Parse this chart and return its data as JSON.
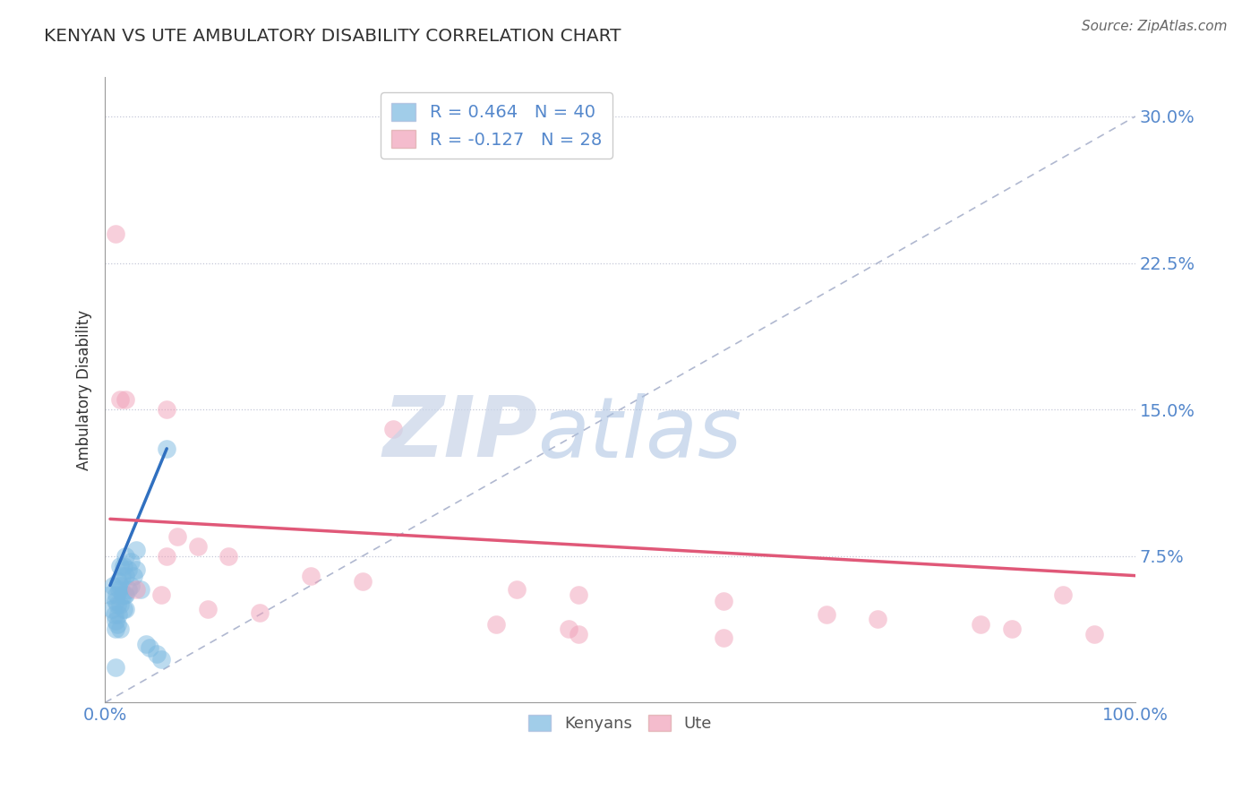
{
  "title": "KENYAN VS UTE AMBULATORY DISABILITY CORRELATION CHART",
  "source": "Source: ZipAtlas.com",
  "ylabel": "Ambulatory Disability",
  "xlim": [
    0.0,
    1.0
  ],
  "ylim": [
    0.0,
    0.32
  ],
  "yticks": [
    0.075,
    0.15,
    0.225,
    0.3
  ],
  "ytick_labels": [
    "7.5%",
    "15.0%",
    "22.5%",
    "30.0%"
  ],
  "xticks": [
    0.0,
    0.25,
    0.5,
    0.75,
    1.0
  ],
  "xtick_labels": [
    "0.0%",
    "",
    "",
    "",
    "100.0%"
  ],
  "legend_entries": [
    {
      "label": "R = 0.464   N = 40"
    },
    {
      "label": "R = -0.127   N = 28"
    }
  ],
  "legend_bottom": [
    "Kenyans",
    "Ute"
  ],
  "blue_color": "#7ab8e0",
  "pink_color": "#f0a0b8",
  "ref_line_color": "#b0b8d0",
  "blue_reg_color": "#3070c0",
  "pink_reg_color": "#e05878",
  "blue_scatter": [
    [
      0.005,
      0.055
    ],
    [
      0.007,
      0.048
    ],
    [
      0.008,
      0.06
    ],
    [
      0.009,
      0.045
    ],
    [
      0.01,
      0.052
    ],
    [
      0.01,
      0.042
    ],
    [
      0.01,
      0.038
    ],
    [
      0.011,
      0.055
    ],
    [
      0.012,
      0.05
    ],
    [
      0.012,
      0.04
    ],
    [
      0.013,
      0.062
    ],
    [
      0.013,
      0.045
    ],
    [
      0.014,
      0.058
    ],
    [
      0.015,
      0.07
    ],
    [
      0.015,
      0.06
    ],
    [
      0.015,
      0.05
    ],
    [
      0.015,
      0.038
    ],
    [
      0.016,
      0.065
    ],
    [
      0.017,
      0.055
    ],
    [
      0.018,
      0.07
    ],
    [
      0.018,
      0.048
    ],
    [
      0.019,
      0.055
    ],
    [
      0.02,
      0.075
    ],
    [
      0.02,
      0.065
    ],
    [
      0.02,
      0.055
    ],
    [
      0.02,
      0.048
    ],
    [
      0.022,
      0.068
    ],
    [
      0.022,
      0.058
    ],
    [
      0.025,
      0.072
    ],
    [
      0.025,
      0.06
    ],
    [
      0.028,
      0.065
    ],
    [
      0.03,
      0.078
    ],
    [
      0.03,
      0.068
    ],
    [
      0.035,
      0.058
    ],
    [
      0.04,
      0.03
    ],
    [
      0.043,
      0.028
    ],
    [
      0.05,
      0.025
    ],
    [
      0.055,
      0.022
    ],
    [
      0.06,
      0.13
    ],
    [
      0.01,
      0.018
    ]
  ],
  "pink_scatter": [
    [
      0.01,
      0.24
    ],
    [
      0.015,
      0.155
    ],
    [
      0.02,
      0.155
    ],
    [
      0.06,
      0.15
    ],
    [
      0.28,
      0.14
    ],
    [
      0.07,
      0.085
    ],
    [
      0.09,
      0.08
    ],
    [
      0.06,
      0.075
    ],
    [
      0.12,
      0.075
    ],
    [
      0.2,
      0.065
    ],
    [
      0.25,
      0.062
    ],
    [
      0.4,
      0.058
    ],
    [
      0.03,
      0.058
    ],
    [
      0.055,
      0.055
    ],
    [
      0.46,
      0.055
    ],
    [
      0.6,
      0.052
    ],
    [
      0.1,
      0.048
    ],
    [
      0.15,
      0.046
    ],
    [
      0.7,
      0.045
    ],
    [
      0.75,
      0.043
    ],
    [
      0.38,
      0.04
    ],
    [
      0.85,
      0.04
    ],
    [
      0.45,
      0.038
    ],
    [
      0.88,
      0.038
    ],
    [
      0.46,
      0.035
    ],
    [
      0.6,
      0.033
    ],
    [
      0.93,
      0.055
    ],
    [
      0.96,
      0.035
    ]
  ],
  "blue_reg_line": [
    [
      0.005,
      0.06
    ],
    [
      0.06,
      0.13
    ]
  ],
  "pink_reg_line": [
    [
      0.005,
      0.094
    ],
    [
      1.0,
      0.065
    ]
  ],
  "ref_diag_line": [
    [
      0.0,
      0.0
    ],
    [
      1.0,
      0.3
    ]
  ],
  "background": "#ffffff",
  "grid_color": "#c5c8d8",
  "watermark_zip": "ZIP",
  "watermark_atlas": "atlas",
  "watermark_color_zip": "#c8d4e8",
  "watermark_color_atlas": "#a8c0e0"
}
